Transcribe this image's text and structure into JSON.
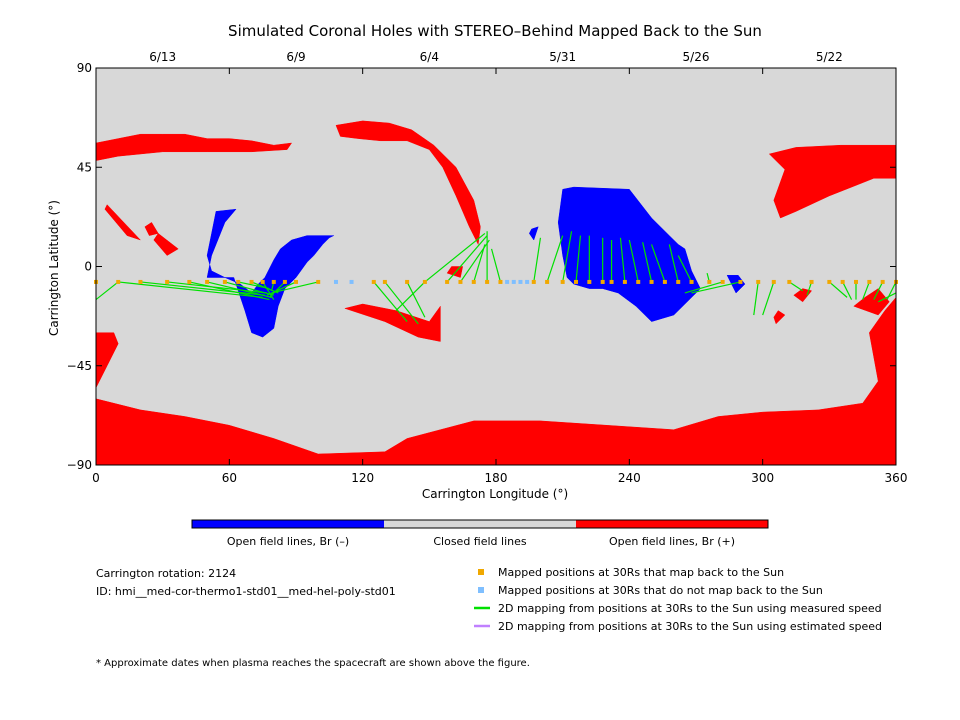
{
  "chart_data": {
    "type": "scatter",
    "title": "Simulated Coronal Holes with STEREO–Behind Mapped Back to the Sun",
    "xlabel": "Carrington Longitude (°)",
    "ylabel": "Carrington Latitude (°)",
    "xlim": [
      0,
      360
    ],
    "ylim": [
      -90,
      90
    ],
    "x_ticks": [
      0,
      60,
      120,
      180,
      240,
      300,
      360
    ],
    "y_ticks": [
      -90,
      -45,
      0,
      45,
      90
    ],
    "top_axis_dates": [
      {
        "label": "6/13",
        "x": 30
      },
      {
        "label": "6/9",
        "x": 90
      },
      {
        "label": "6/4",
        "x": 150
      },
      {
        "label": "5/31",
        "x": 210
      },
      {
        "label": "5/26",
        "x": 270
      },
      {
        "label": "5/22",
        "x": 330
      }
    ],
    "colors": {
      "closed": "#d8d8d8",
      "open_negative": "#0000ff",
      "open_positive": "#ff0000",
      "mapped": "#f0a800",
      "not_mapped": "#7fbfff",
      "measured_line": "#00e000",
      "estimated_line": "#c080ff"
    },
    "regions": {
      "positive": [
        [
          [
            0,
            -60
          ],
          [
            20,
            -65
          ],
          [
            40,
            -68
          ],
          [
            60,
            -72
          ],
          [
            80,
            -78
          ],
          [
            100,
            -85
          ],
          [
            130,
            -84
          ],
          [
            140,
            -78
          ],
          [
            155,
            -74
          ],
          [
            170,
            -70
          ],
          [
            200,
            -70
          ],
          [
            230,
            -72
          ],
          [
            260,
            -74
          ],
          [
            280,
            -68
          ],
          [
            300,
            -66
          ],
          [
            325,
            -65
          ],
          [
            345,
            -62
          ],
          [
            352,
            -52
          ],
          [
            348,
            -30
          ],
          [
            355,
            -20
          ],
          [
            360,
            -14
          ],
          [
            360,
            -90
          ],
          [
            0,
            -90
          ]
        ],
        [
          [
            0,
            56
          ],
          [
            10,
            58
          ],
          [
            20,
            60
          ],
          [
            30,
            60
          ],
          [
            40,
            60
          ],
          [
            50,
            58
          ],
          [
            60,
            58
          ],
          [
            70,
            57
          ],
          [
            80,
            55
          ],
          [
            88,
            56
          ],
          [
            86,
            53
          ],
          [
            70,
            52
          ],
          [
            50,
            52
          ],
          [
            30,
            52
          ],
          [
            10,
            50
          ],
          [
            0,
            48
          ]
        ],
        [
          [
            108,
            64
          ],
          [
            120,
            66
          ],
          [
            132,
            65
          ],
          [
            142,
            62
          ],
          [
            152,
            55
          ],
          [
            162,
            45
          ],
          [
            170,
            30
          ],
          [
            173,
            18
          ],
          [
            172,
            10
          ],
          [
            168,
            18
          ],
          [
            162,
            32
          ],
          [
            156,
            45
          ],
          [
            150,
            53
          ],
          [
            140,
            57
          ],
          [
            128,
            57
          ],
          [
            118,
            58
          ],
          [
            110,
            59
          ]
        ],
        [
          [
            303,
            51
          ],
          [
            315,
            54
          ],
          [
            335,
            55
          ],
          [
            360,
            55
          ],
          [
            360,
            40
          ],
          [
            350,
            40
          ],
          [
            340,
            36
          ],
          [
            330,
            32
          ],
          [
            315,
            25
          ],
          [
            308,
            22
          ],
          [
            305,
            30
          ],
          [
            310,
            44
          ]
        ],
        [
          [
            0,
            -55
          ],
          [
            5,
            -45
          ],
          [
            10,
            -35
          ],
          [
            8,
            -30
          ],
          [
            0,
            -30
          ]
        ],
        [
          [
            5,
            28
          ],
          [
            20,
            12
          ],
          [
            14,
            14
          ],
          [
            4,
            26
          ]
        ],
        [
          [
            28,
            15
          ],
          [
            37,
            8
          ],
          [
            32,
            5
          ],
          [
            26,
            12
          ]
        ],
        [
          [
            25,
            20
          ],
          [
            28,
            15
          ],
          [
            24,
            14
          ],
          [
            22,
            18
          ]
        ],
        [
          [
            112,
            -19
          ],
          [
            130,
            -25
          ],
          [
            145,
            -32
          ],
          [
            155,
            -34
          ],
          [
            155,
            -18
          ],
          [
            150,
            -25
          ],
          [
            135,
            -20
          ],
          [
            120,
            -17
          ]
        ],
        [
          [
            160,
            0
          ],
          [
            165,
            0
          ],
          [
            164,
            -5
          ],
          [
            158,
            -3
          ]
        ],
        [
          [
            318,
            -10
          ],
          [
            322,
            -11
          ],
          [
            318,
            -16
          ],
          [
            314,
            -13
          ]
        ],
        [
          [
            307,
            -20
          ],
          [
            310,
            -22
          ],
          [
            306,
            -26
          ],
          [
            305,
            -23
          ]
        ],
        [
          [
            341,
            -18
          ],
          [
            346,
            -14
          ],
          [
            352,
            -10
          ],
          [
            357,
            -16
          ],
          [
            352,
            -22
          ]
        ],
        [
          [
            353,
            -50
          ],
          [
            360,
            -45
          ],
          [
            360,
            -55
          ],
          [
            355,
            -60
          ]
        ]
      ],
      "negative": [
        [
          [
            210,
            35
          ],
          [
            215,
            36
          ],
          [
            240,
            35
          ],
          [
            250,
            22
          ],
          [
            258,
            14
          ],
          [
            262,
            10
          ],
          [
            265,
            8
          ],
          [
            268,
            -2
          ],
          [
            272,
            -10
          ],
          [
            260,
            -22
          ],
          [
            250,
            -25
          ],
          [
            243,
            -18
          ],
          [
            235,
            -12
          ],
          [
            228,
            -10
          ],
          [
            222,
            -10
          ],
          [
            215,
            -8
          ],
          [
            212,
            -5
          ],
          [
            210,
            5
          ],
          [
            208,
            20
          ]
        ],
        [
          [
            54,
            25
          ],
          [
            63,
            26
          ],
          [
            58,
            20
          ],
          [
            52,
            5
          ],
          [
            50,
            -5
          ],
          [
            62,
            -5
          ],
          [
            67,
            -20
          ],
          [
            70,
            -30
          ],
          [
            75,
            -32
          ],
          [
            80,
            -28
          ],
          [
            82,
            -18
          ],
          [
            85,
            -10
          ],
          [
            90,
            -5
          ],
          [
            95,
            2
          ],
          [
            98,
            5
          ],
          [
            102,
            10
          ],
          [
            105,
            13
          ],
          [
            107,
            14
          ],
          [
            95,
            14
          ],
          [
            88,
            12
          ],
          [
            83,
            8
          ],
          [
            80,
            3
          ],
          [
            76,
            -5
          ],
          [
            73,
            -8
          ],
          [
            70,
            -12
          ],
          [
            65,
            -8
          ],
          [
            58,
            -5
          ],
          [
            52,
            -2
          ],
          [
            50,
            5
          ],
          [
            52,
            15
          ]
        ],
        [
          [
            196,
            17
          ],
          [
            199,
            18
          ],
          [
            197,
            12
          ],
          [
            195,
            15
          ]
        ],
        [
          [
            284,
            -4
          ],
          [
            288,
            -12
          ],
          [
            292,
            -8
          ],
          [
            289,
            -4
          ]
        ]
      ]
    },
    "mapped_points_30Rs": [
      [
        0,
        -7
      ],
      [
        10,
        -7
      ],
      [
        20,
        -7
      ],
      [
        32,
        -7
      ],
      [
        42,
        -7
      ],
      [
        50,
        -7
      ],
      [
        58,
        -7
      ],
      [
        64,
        -7
      ],
      [
        70,
        -7
      ],
      [
        75,
        -7
      ],
      [
        80,
        -7
      ],
      [
        85,
        -7
      ],
      [
        90,
        -7
      ],
      [
        100,
        -7
      ],
      [
        125,
        -7
      ],
      [
        130,
        -7
      ],
      [
        140,
        -7
      ],
      [
        148,
        -7
      ],
      [
        158,
        -7
      ],
      [
        164,
        -7
      ],
      [
        170,
        -7
      ],
      [
        176,
        -7
      ],
      [
        182,
        -7
      ],
      [
        197,
        -7
      ],
      [
        203,
        -7
      ],
      [
        210,
        -7
      ],
      [
        216,
        -7
      ],
      [
        222,
        -7
      ],
      [
        228,
        -7
      ],
      [
        232,
        -7
      ],
      [
        238,
        -7
      ],
      [
        244,
        -7
      ],
      [
        250,
        -7
      ],
      [
        256,
        -7
      ],
      [
        262,
        -7
      ],
      [
        268,
        -7
      ],
      [
        276,
        -7
      ],
      [
        282,
        -7
      ],
      [
        290,
        -7
      ],
      [
        298,
        -7
      ],
      [
        305,
        -7
      ],
      [
        312,
        -7
      ],
      [
        322,
        -7
      ],
      [
        330,
        -7
      ],
      [
        336,
        -7
      ],
      [
        342,
        -7
      ],
      [
        348,
        -7
      ],
      [
        354,
        -7
      ],
      [
        360,
        -7
      ]
    ],
    "unmapped_points_30Rs": [
      [
        108,
        -7
      ],
      [
        115,
        -7
      ],
      [
        185,
        -7
      ],
      [
        188,
        -7
      ],
      [
        191,
        -7
      ],
      [
        194,
        -7
      ]
    ],
    "measured_mappings": [
      [
        0,
        -15,
        10,
        -7
      ],
      [
        10,
        -7,
        75,
        -14
      ],
      [
        20,
        -7,
        76,
        -13
      ],
      [
        32,
        -7,
        77,
        -12
      ],
      [
        42,
        -7,
        78,
        -15
      ],
      [
        50,
        -7,
        79,
        -14
      ],
      [
        58,
        -7,
        80,
        -13
      ],
      [
        64,
        -7,
        78,
        -10
      ],
      [
        70,
        -7,
        82,
        -12
      ],
      [
        75,
        -7,
        80,
        -15
      ],
      [
        80,
        -7,
        79,
        -11
      ],
      [
        85,
        -7,
        78,
        -14
      ],
      [
        90,
        -7,
        77,
        -13
      ],
      [
        100,
        -7,
        79,
        -12
      ],
      [
        125,
        -7,
        140,
        -25
      ],
      [
        130,
        -7,
        145,
        -26
      ],
      [
        140,
        -7,
        148,
        -23
      ],
      [
        148,
        -7,
        135,
        -20
      ],
      [
        148,
        -7,
        175,
        15
      ],
      [
        158,
        -7,
        176,
        14
      ],
      [
        164,
        -7,
        177,
        12
      ],
      [
        170,
        -7,
        175,
        10
      ],
      [
        176,
        -7,
        176,
        16
      ],
      [
        182,
        -7,
        178,
        8
      ],
      [
        197,
        -7,
        200,
        13
      ],
      [
        203,
        -7,
        210,
        14
      ],
      [
        210,
        -7,
        214,
        16
      ],
      [
        216,
        -7,
        218,
        14
      ],
      [
        222,
        -7,
        222,
        14
      ],
      [
        228,
        -7,
        228,
        13
      ],
      [
        232,
        -7,
        232,
        12
      ],
      [
        238,
        -7,
        236,
        13
      ],
      [
        244,
        -7,
        240,
        12
      ],
      [
        250,
        -7,
        246,
        11
      ],
      [
        256,
        -7,
        250,
        10
      ],
      [
        262,
        -7,
        258,
        10
      ],
      [
        268,
        -7,
        262,
        5
      ],
      [
        276,
        -7,
        275,
        -3
      ],
      [
        282,
        -7,
        265,
        -12
      ],
      [
        290,
        -7,
        268,
        -12
      ],
      [
        298,
        -7,
        296,
        -22
      ],
      [
        305,
        -7,
        300,
        -22
      ],
      [
        312,
        -7,
        318,
        -11
      ],
      [
        322,
        -7,
        320,
        -13
      ],
      [
        330,
        -7,
        338,
        -14
      ],
      [
        336,
        -7,
        340,
        -15
      ],
      [
        342,
        -7,
        342,
        -15
      ],
      [
        348,
        -7,
        345,
        -15
      ],
      [
        354,
        -7,
        350,
        -15
      ],
      [
        360,
        -7,
        356,
        -15
      ],
      [
        360,
        -12,
        352,
        -16
      ]
    ],
    "legend": {
      "colorbar": [
        {
          "label": "Open field lines, Br (–)",
          "color": "#0000ff"
        },
        {
          "label": "Closed field lines",
          "color": "#d8d8d8"
        },
        {
          "label": "Open field lines, Br (+)",
          "color": "#ff0000"
        }
      ],
      "entries": [
        {
          "label": "Mapped positions at 30Rs that map back to the Sun",
          "kind": "square",
          "color": "#f0a800"
        },
        {
          "label": "Mapped positions at 30Rs that do not map back to the Sun",
          "kind": "square",
          "color": "#7fbfff"
        },
        {
          "label": "2D mapping from positions at 30Rs to the Sun using measured speed",
          "kind": "line",
          "color": "#00e000"
        },
        {
          "label": "2D mapping from positions at 30Rs to the Sun using estimated speed",
          "kind": "line",
          "color": "#c080ff"
        }
      ]
    },
    "info": {
      "rotation": "Carrington rotation: 2124",
      "id": "ID: hmi__med-cor-thermo1-std01__med-hel-poly-std01"
    },
    "footnote": "* Approximate dates when plasma reaches the spacecraft are shown above the figure."
  }
}
